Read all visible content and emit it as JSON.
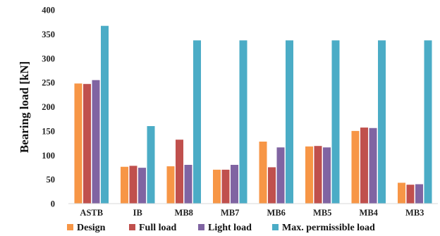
{
  "chart_data": {
    "type": "bar",
    "ylabel": "Bearing load [kN]",
    "xlabel": "",
    "ylim": [
      0,
      400
    ],
    "yticks": [
      0,
      50,
      100,
      150,
      200,
      250,
      300,
      350,
      400
    ],
    "grid": false,
    "legend_position": "bottom",
    "categories": [
      "ASTB",
      "IB",
      "MB8",
      "MB7",
      "MB6",
      "MB5",
      "MB4",
      "MB3"
    ],
    "series": [
      {
        "name": "Design",
        "color": "#F79646",
        "values": [
          248,
          76,
          77,
          70,
          128,
          118,
          150,
          43
        ]
      },
      {
        "name": "Full load",
        "color": "#C0504D",
        "values": [
          247,
          78,
          132,
          70,
          75,
          119,
          157,
          39
        ]
      },
      {
        "name": "Light load",
        "color": "#8064A2",
        "values": [
          255,
          74,
          80,
          80,
          116,
          116,
          156,
          40
        ]
      },
      {
        "name": "Max. permissible load",
        "color": "#4BACC6",
        "values": [
          367,
          160,
          337,
          337,
          337,
          337,
          337,
          337
        ]
      }
    ]
  }
}
